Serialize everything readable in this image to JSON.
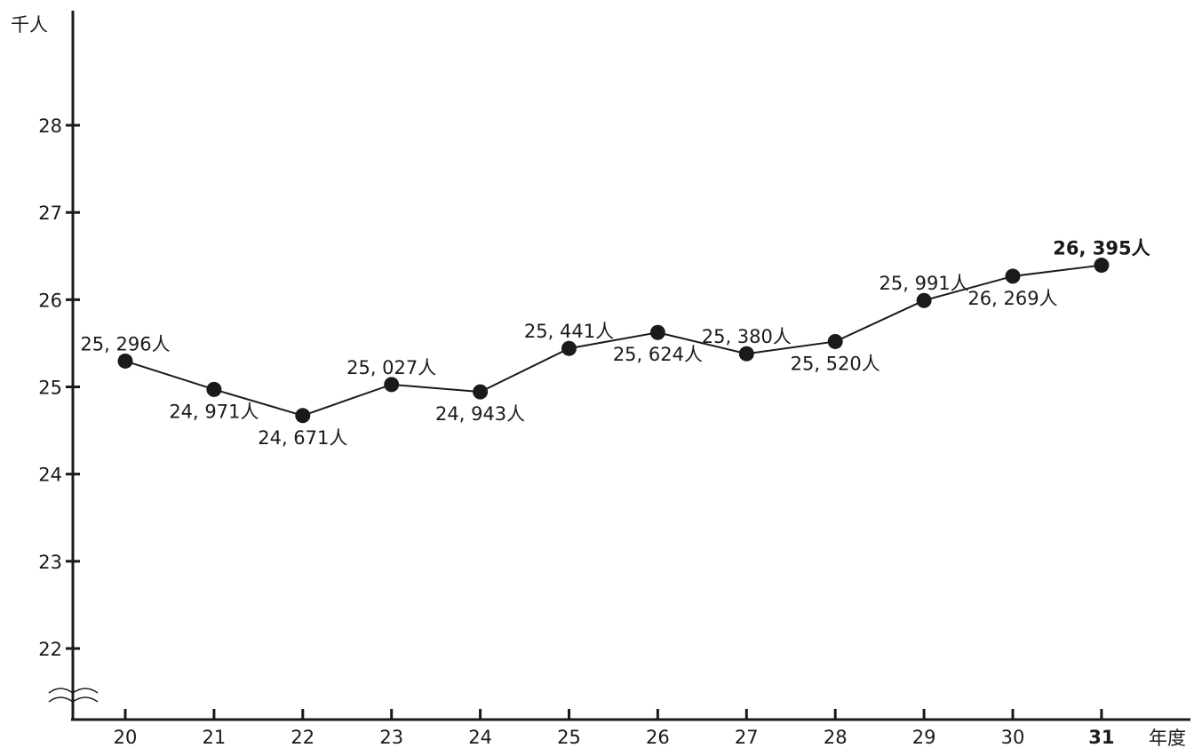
{
  "chart_data": {
    "type": "line",
    "title": "",
    "ylabel": "千人",
    "xlabel": "年度",
    "ylim": [
      22,
      28
    ],
    "y_ticks": [
      "22",
      "23",
      "24",
      "25",
      "26",
      "27",
      "28"
    ],
    "y_axis_break": true,
    "categories": [
      "20",
      "21",
      "22",
      "23",
      "24",
      "25",
      "26",
      "27",
      "28",
      "29",
      "30",
      "31"
    ],
    "highlight_category": "31",
    "series": [
      {
        "values": [
          25296,
          24971,
          24671,
          25027,
          24943,
          25441,
          25624,
          25380,
          25520,
          25991,
          26269,
          26395
        ],
        "labels": [
          "25, 296人",
          "24, 971人",
          "24, 671人",
          "25, 027人",
          "24, 943人",
          "25, 441人",
          "25, 624人",
          "25, 380人",
          "25, 520人",
          "25, 991人",
          "26, 269人",
          "26, 395人"
        ],
        "label_positions": [
          "above",
          "below",
          "below",
          "above",
          "below",
          "above",
          "below",
          "above",
          "below",
          "above",
          "below",
          "above"
        ]
      }
    ],
    "grid": false,
    "legend": "none"
  }
}
